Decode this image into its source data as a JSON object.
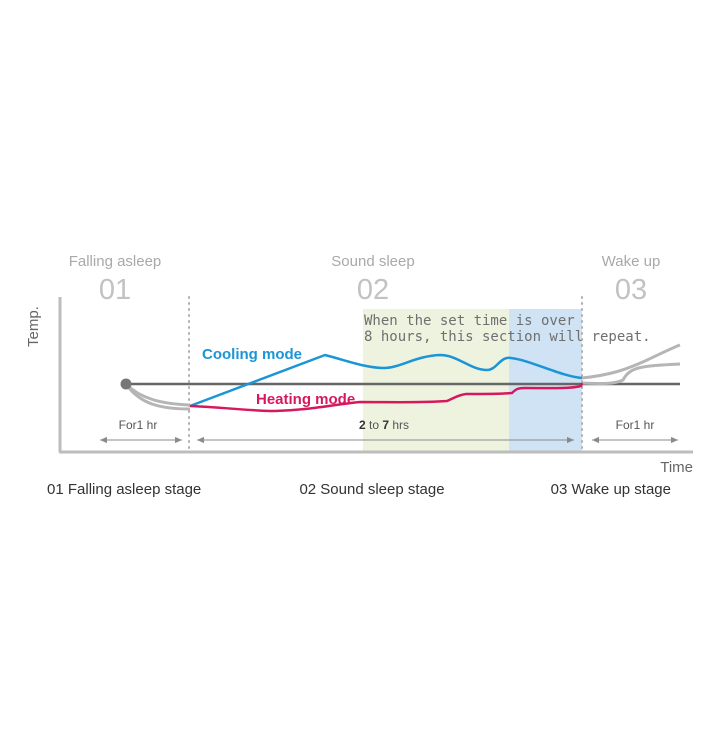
{
  "stages": [
    {
      "title": "Falling asleep",
      "number": "01"
    },
    {
      "title": "Sound sleep",
      "number": "02"
    },
    {
      "title": "Wake up",
      "number": "03"
    }
  ],
  "axes": {
    "y_label": "Temp.",
    "x_label": "Time"
  },
  "repeat_note": {
    "line1": "When the set time is over",
    "line2": "8 hours, this section will repeat."
  },
  "modes": {
    "cooling": "Cooling mode",
    "heating": "Heating mode"
  },
  "durations": {
    "falling_asleep": "For1 hr",
    "sound_sleep": {
      "from": "2",
      "to_word": "to",
      "to": "7",
      "unit": "hrs"
    },
    "wake_up": "For1 hr"
  },
  "stage_labels": [
    "01 Falling asleep stage",
    "02 Sound sleep stage",
    "03 Wake up stage"
  ],
  "colors": {
    "cooling": "#1b95d5",
    "heating": "#d6195f",
    "set_temperature": "#666666",
    "transition_curves": "#b5b5b5",
    "repeat_zone_green": "#eef3e0",
    "repeat_zone_blue": "#cfe3f5",
    "axis": "#bdbdbd"
  }
}
